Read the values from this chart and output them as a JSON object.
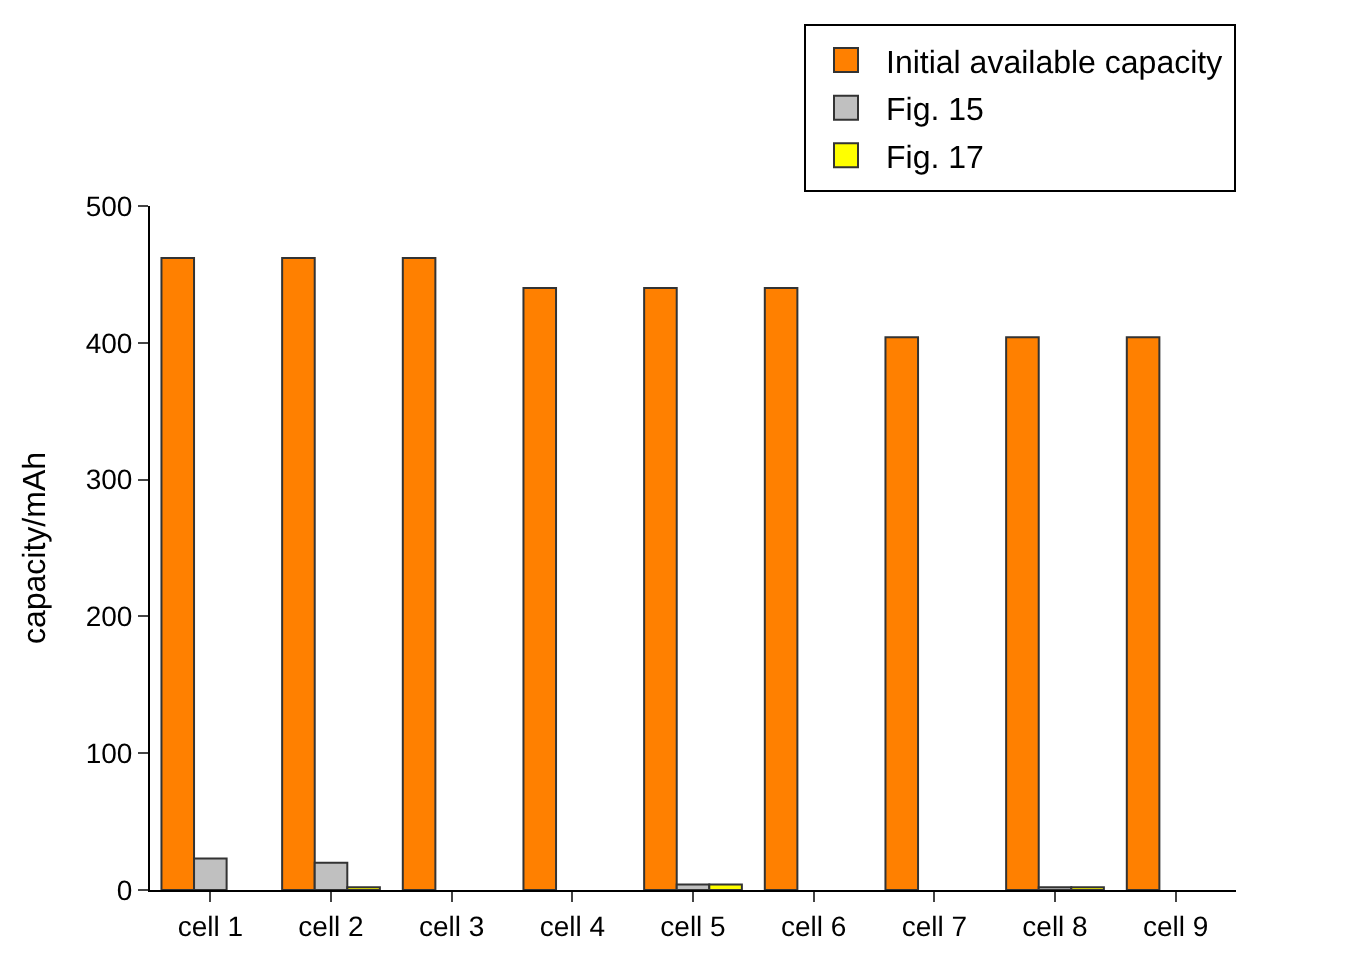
{
  "chart_data": {
    "type": "bar",
    "ylabel": "capacity/mAh",
    "categories": [
      "cell 1",
      "cell 2",
      "cell 3",
      "cell 4",
      "cell 5",
      "cell 6",
      "cell 7",
      "cell 8",
      "cell 9"
    ],
    "series": [
      {
        "name": "Initial available capacity",
        "color": "#ff8000",
        "values": [
          462,
          462,
          462,
          440,
          440,
          440,
          404,
          404,
          404
        ]
      },
      {
        "name": "Fig. 15",
        "color": "#c0c0c0",
        "values": [
          23,
          20,
          null,
          null,
          4,
          null,
          null,
          2,
          null
        ]
      },
      {
        "name": "Fig. 17",
        "color": "#ffff00",
        "values": [
          null,
          2,
          null,
          null,
          4,
          null,
          null,
          2,
          null
        ]
      }
    ],
    "ylim": [
      0,
      500
    ],
    "yticks": [
      0,
      100,
      200,
      300,
      400,
      500
    ],
    "legend": "top right"
  }
}
